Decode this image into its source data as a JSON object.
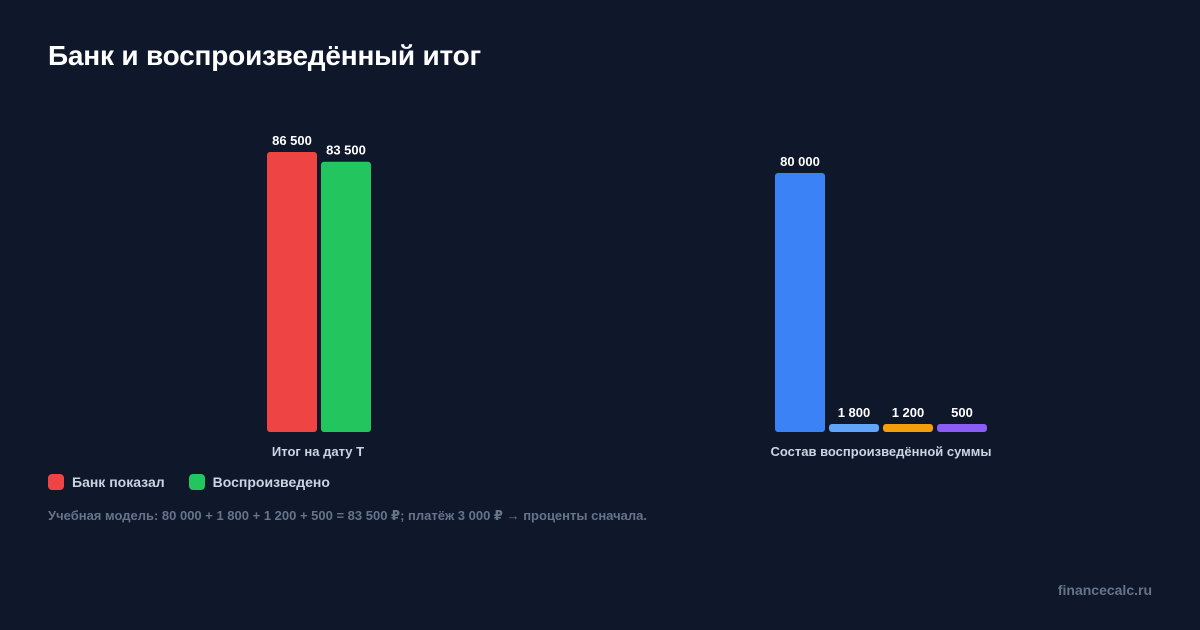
{
  "title": "Банк и воспроизведённый итог",
  "chart_data": [
    {
      "type": "bar",
      "xlabel": "Итог на дату T",
      "categories": [
        "Банк показал",
        "Воспроизведено"
      ],
      "values": [
        86500,
        83500
      ],
      "value_labels": [
        "86 500",
        "83 500"
      ],
      "colors": [
        "#ef4444",
        "#22c55e"
      ],
      "ylim": [
        0,
        86500
      ]
    },
    {
      "type": "bar",
      "xlabel": "Состав воспроизведённой суммы",
      "values": [
        80000,
        1800,
        1200,
        500
      ],
      "value_labels": [
        "80 000",
        "1 800",
        "1 200",
        "500"
      ],
      "colors": [
        "#3b82f6",
        "#60a5fa",
        "#f59e0b",
        "#8b5cf6"
      ],
      "ylim": [
        0,
        86500
      ]
    }
  ],
  "legend": [
    {
      "label": "Банк показал",
      "color": "#ef4444"
    },
    {
      "label": "Воспроизведено",
      "color": "#22c55e"
    }
  ],
  "note": "Учебная модель: 80 000 + 1 800 + 1 200 + 500 = 83 500 ₽; платёж 3 000 ₽ → проценты сначала.",
  "brand": "financecalc.ru"
}
